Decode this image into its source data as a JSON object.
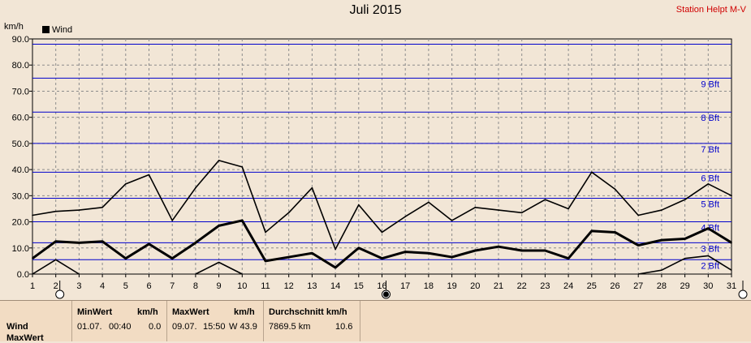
{
  "title": "Juli 2015",
  "station": "Station Helpt M-V",
  "unit_label": "km/h",
  "chart_data": {
    "type": "line",
    "title": "Juli 2015",
    "ylabel": "km/h",
    "x": [
      1,
      2,
      3,
      4,
      5,
      6,
      7,
      8,
      9,
      10,
      11,
      12,
      13,
      14,
      15,
      16,
      17,
      18,
      19,
      20,
      21,
      22,
      23,
      24,
      25,
      26,
      27,
      28,
      29,
      30,
      31
    ],
    "ylim": [
      0,
      90
    ],
    "yticks": [
      "0.0",
      "10.0",
      "20.0",
      "30.0",
      "40.0",
      "50.0",
      "60.0",
      "70.0",
      "80.0",
      "90.0"
    ],
    "legend": [
      {
        "label": "Wind",
        "color": "#000000",
        "position": "top-left"
      }
    ],
    "series": [
      {
        "role": "max",
        "values": [
          22.5,
          24,
          24.5,
          25.5,
          34.5,
          38,
          20.5,
          33,
          43.5,
          41,
          16,
          23.5,
          33,
          9.5,
          26.5,
          16,
          22,
          27.5,
          20.5,
          25.5,
          24.5,
          23.5,
          28.5,
          25,
          39,
          32.5,
          22.5,
          24.5,
          28.5,
          34.5,
          30
        ]
      },
      {
        "role": "avg",
        "values": [
          6,
          12.5,
          12,
          12.5,
          6,
          11.5,
          6,
          12,
          18.5,
          20.5,
          5,
          6.5,
          8,
          2.5,
          10,
          6,
          8.5,
          8,
          6.5,
          9,
          10.5,
          9,
          9,
          6,
          16.5,
          16,
          11,
          13,
          13.5,
          17.5,
          12
        ]
      },
      {
        "role": "min",
        "segments": [
          {
            "x": [
              1,
              2,
              3
            ],
            "values": [
              0,
              5.5,
              0
            ]
          },
          {
            "x": [
              8,
              9,
              10
            ],
            "values": [
              0,
              4.5,
              0
            ]
          },
          {
            "x": [
              27,
              28,
              29,
              30,
              31
            ],
            "values": [
              0,
              1.5,
              6,
              7,
              1.5
            ]
          }
        ]
      }
    ],
    "beaufort": [
      {
        "label": "2 Bft",
        "value": 5.5
      },
      {
        "label": "3 Bft",
        "value": 12
      },
      {
        "label": "4 Bft",
        "value": 20
      },
      {
        "label": "5 Bft",
        "value": 29
      },
      {
        "label": "6 Bft",
        "value": 39
      },
      {
        "label": "7 Bft",
        "value": 50
      },
      {
        "label": "8 Bft",
        "value": 62
      },
      {
        "label": "9 Bft",
        "value": 75
      },
      {
        "label": "",
        "value": 88
      }
    ],
    "grid": true,
    "line_color": "#000000",
    "beaufort_color": "#0000cc",
    "grid_color": "#8c8c8c",
    "plot_background": "#f2e6d6",
    "markers": [
      {
        "day": 2,
        "style": "open-circle"
      },
      {
        "day": 16,
        "style": "filled-circle"
      },
      {
        "day": 31,
        "style": "open-circle"
      }
    ]
  },
  "panel": {
    "row_label": "Wind",
    "row_label2": "MaxWert",
    "min": {
      "header": "MinWert",
      "unit": "km/h",
      "date": "01.07.",
      "time": "00:40",
      "value": "0.0"
    },
    "max": {
      "header": "MaxWert",
      "unit": "km/h",
      "date": "09.07.",
      "time": "15:50",
      "value": "W 43.9"
    },
    "avg": {
      "header": "Durchschnitt km/h",
      "distance": "7869.5 km",
      "value": "10.6"
    }
  }
}
